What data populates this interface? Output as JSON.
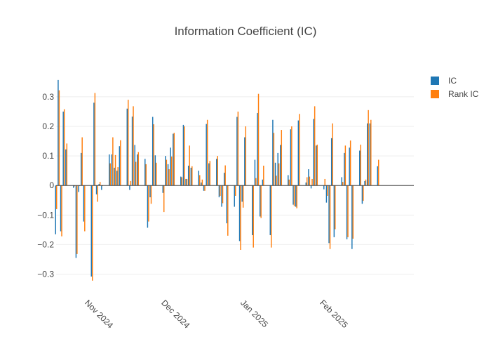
{
  "chart_data": {
    "type": "bar",
    "title": "Information Coefficient (IC)",
    "xlabel": "",
    "ylabel": "",
    "x_start": "2024-10-21",
    "x_end": "2025-03-10",
    "ylim": [
      -0.37,
      0.39
    ],
    "y_ticks": [
      -0.3,
      -0.2,
      -0.1,
      0,
      0.1,
      0.2,
      0.3
    ],
    "y_tick_labels": [
      "−0.3",
      "−0.2",
      "−0.1",
      "0",
      "0.1",
      "0.2",
      "0.3"
    ],
    "x_ticks": [
      {
        "date": "2024-11-01",
        "label": "Nov 2024"
      },
      {
        "date": "2024-12-01",
        "label": "Dec 2024"
      },
      {
        "date": "2025-01-01",
        "label": "Jan 2025"
      },
      {
        "date": "2025-02-01",
        "label": "Feb 2025"
      }
    ],
    "grid": true,
    "legend_position": "top-right",
    "dates": [
      "2024-10-21",
      "2024-10-22",
      "2024-10-23",
      "2024-10-24",
      "2024-10-25",
      "2024-10-28",
      "2024-10-29",
      "2024-10-30",
      "2024-10-31",
      "2024-11-01",
      "2024-11-04",
      "2024-11-05",
      "2024-11-06",
      "2024-11-07",
      "2024-11-08",
      "2024-11-11",
      "2024-11-12",
      "2024-11-13",
      "2024-11-14",
      "2024-11-15",
      "2024-11-18",
      "2024-11-19",
      "2024-11-20",
      "2024-11-21",
      "2024-11-22",
      "2024-11-25",
      "2024-11-26",
      "2024-11-27",
      "2024-11-28",
      "2024-11-29",
      "2024-12-02",
      "2024-12-03",
      "2024-12-04",
      "2024-12-05",
      "2024-12-06",
      "2024-12-09",
      "2024-12-10",
      "2024-12-11",
      "2024-12-12",
      "2024-12-13",
      "2024-12-16",
      "2024-12-17",
      "2024-12-18",
      "2024-12-19",
      "2024-12-20",
      "2024-12-23",
      "2024-12-24",
      "2024-12-25",
      "2024-12-26",
      "2024-12-27",
      "2024-12-30",
      "2024-12-31",
      "2025-01-01",
      "2025-01-02",
      "2025-01-03",
      "2025-01-06",
      "2025-01-07",
      "2025-01-08",
      "2025-01-09",
      "2025-01-10",
      "2025-01-13",
      "2025-01-14",
      "2025-01-15",
      "2025-01-16",
      "2025-01-17",
      "2025-01-20",
      "2025-01-21",
      "2025-01-22",
      "2025-01-23",
      "2025-01-24",
      "2025-01-27",
      "2025-01-28",
      "2025-01-29",
      "2025-01-30",
      "2025-01-31",
      "2025-02-03",
      "2025-02-04",
      "2025-02-05",
      "2025-02-06",
      "2025-02-07",
      "2025-02-10",
      "2025-02-11",
      "2025-02-12",
      "2025-02-13",
      "2025-02-14",
      "2025-02-17",
      "2025-02-18",
      "2025-02-19",
      "2025-02-20",
      "2025-02-21",
      "2025-02-24",
      "2025-02-25",
      "2025-02-26",
      "2025-02-27",
      "2025-02-28"
    ],
    "series": [
      {
        "name": "IC",
        "color": "#1f77b4",
        "values": [
          -0.165,
          0.357,
          -0.155,
          0.25,
          0.122,
          -0.008,
          -0.245,
          -0.022,
          0.11,
          -0.122,
          -0.308,
          0.28,
          -0.03,
          0.005,
          -0.015,
          0.105,
          0.105,
          0.06,
          0.05,
          0.133,
          0.26,
          -0.015,
          0.233,
          0.137,
          0.105,
          0.09,
          -0.143,
          -0.04,
          0.232,
          0.102,
          -0.025,
          0.1,
          0.072,
          0.128,
          0.175,
          0.03,
          0.205,
          0.022,
          0.067,
          0.06,
          0.05,
          0.01,
          -0.018,
          0.208,
          0.075,
          0.09,
          -0.04,
          -0.072,
          0.043,
          -0.128,
          -0.072,
          0.232,
          -0.188,
          -0.055,
          0.163,
          -0.168,
          0.087,
          0.245,
          -0.105,
          0.02,
          -0.168,
          0.222,
          0.077,
          0.11,
          0.137,
          0.035,
          0.19,
          -0.065,
          -0.072,
          0.22,
          0.01,
          0.055,
          -0.01,
          0.225,
          0.135,
          -0.013,
          -0.058,
          -0.195,
          0.16,
          -0.175,
          0.028,
          0.11,
          -0.182,
          0.128,
          -0.215,
          0.118,
          -0.062,
          0.015,
          0.21,
          0.21,
          0.065,
          0.0,
          0.0,
          0.0,
          0.0
        ]
      },
      {
        "name": "Rank IC",
        "color": "#ff7f0e",
        "values": [
          -0.08,
          0.322,
          -0.172,
          0.258,
          0.142,
          -0.003,
          -0.232,
          -0.002,
          0.163,
          -0.155,
          -0.322,
          0.313,
          -0.055,
          0.012,
          -0.002,
          0.075,
          0.163,
          0.103,
          0.062,
          0.153,
          0.29,
          0.015,
          0.268,
          0.08,
          0.113,
          0.072,
          -0.122,
          -0.062,
          0.207,
          0.077,
          -0.09,
          0.087,
          0.055,
          0.098,
          0.178,
          0.028,
          0.2,
          0.022,
          0.135,
          0.065,
          0.035,
          0.02,
          -0.018,
          0.222,
          0.083,
          0.1,
          -0.035,
          -0.06,
          0.068,
          -0.17,
          -0.035,
          0.25,
          -0.218,
          -0.075,
          0.2,
          -0.21,
          0.025,
          0.31,
          -0.11,
          0.067,
          -0.21,
          0.178,
          0.033,
          0.075,
          0.188,
          0.02,
          0.2,
          -0.07,
          -0.077,
          0.242,
          0.028,
          0.03,
          0.022,
          0.268,
          0.138,
          0.022,
          -0.035,
          -0.215,
          0.21,
          -0.148,
          0.012,
          0.135,
          -0.175,
          0.152,
          -0.18,
          0.138,
          -0.052,
          0.02,
          0.255,
          0.222,
          0.087,
          0.0,
          0.0,
          0.0,
          0.0
        ]
      }
    ]
  }
}
